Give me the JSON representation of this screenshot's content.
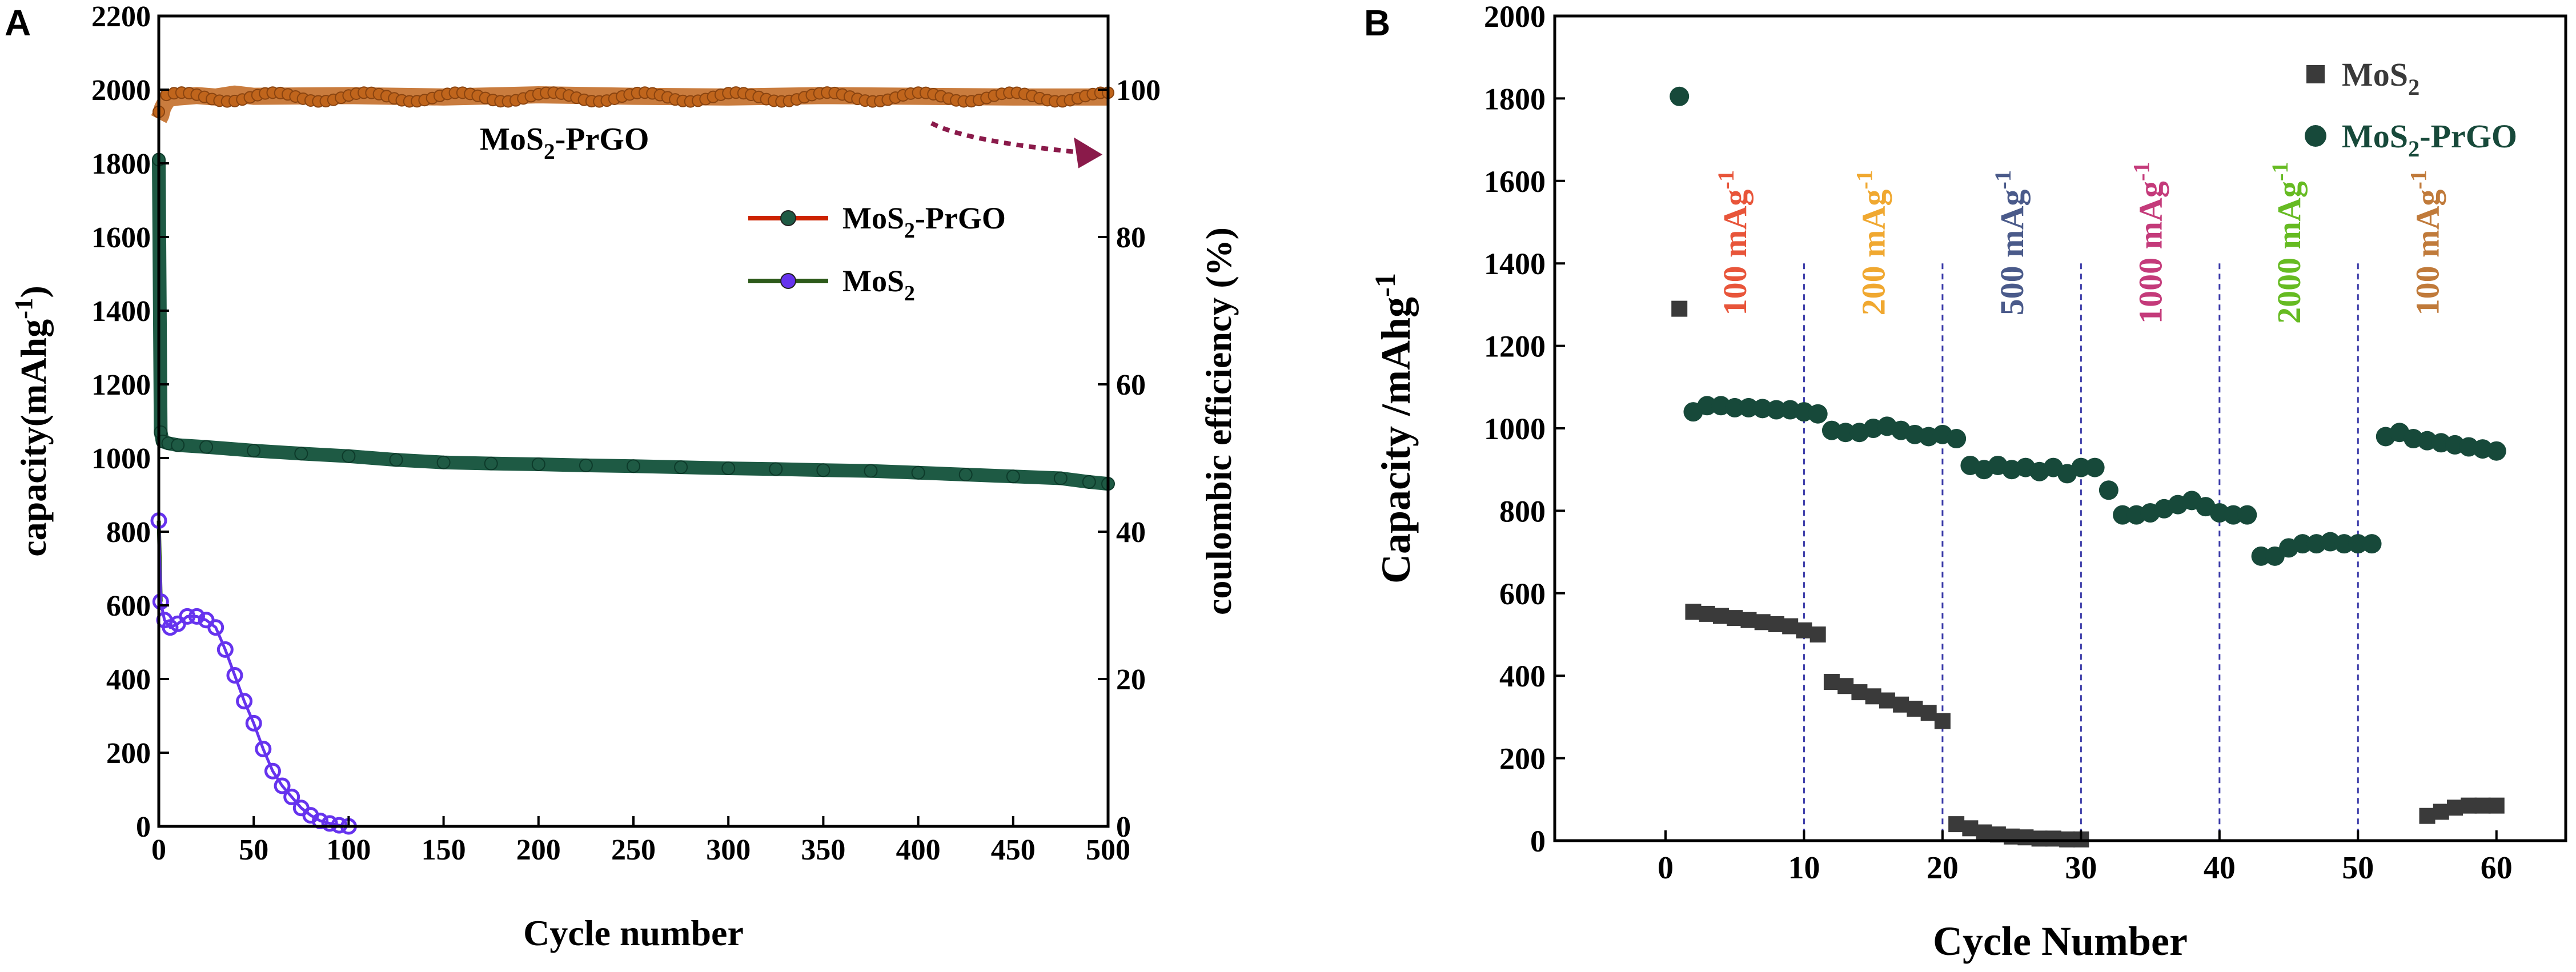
{
  "panels": [
    {
      "letter": "A"
    },
    {
      "letter": "B"
    }
  ],
  "chart_data": [
    {
      "type": "line",
      "panel": "A",
      "title": "",
      "xlabel": "Cycle number",
      "ylabel": "capacity(mAhg",
      "ylabel_sup": "-1",
      "ylabel_close": ")",
      "y2label": "coulombic efficiency (%)",
      "xlim": [
        0,
        500
      ],
      "ylim": [
        0,
        2200
      ],
      "y2lim": [
        0,
        110
      ],
      "xticks": [
        0,
        50,
        100,
        150,
        200,
        250,
        300,
        350,
        400,
        450,
        500
      ],
      "yticks": [
        0,
        200,
        400,
        600,
        800,
        1000,
        1200,
        1400,
        1600,
        1800,
        2000,
        2200
      ],
      "y2ticks": [
        0,
        20,
        40,
        60,
        80,
        100
      ],
      "grid": false,
      "legend_position": "center-right",
      "legend": [
        {
          "base": "MoS",
          "sub": "2",
          "tail": "-PrGO",
          "color": "#cc2200",
          "marker": "#1e5a44"
        },
        {
          "base": "MoS",
          "sub": "2",
          "tail": "",
          "color": "#2d5a1a",
          "marker": "#6633ee"
        }
      ],
      "annotation": {
        "base": "MoS",
        "sub": "2",
        "tail": "-PrGO",
        "x": 400,
        "y2": 97
      },
      "ce_color": "#c0651c",
      "series": [
        {
          "name": "MoS2-PrGO",
          "axis": "left",
          "color": "#1e5a44",
          "x": [
            0,
            1,
            2,
            5,
            10,
            25,
            50,
            75,
            100,
            125,
            150,
            175,
            200,
            225,
            250,
            275,
            300,
            325,
            350,
            375,
            400,
            425,
            450,
            475,
            490,
            500
          ],
          "y": [
            1810,
            1070,
            1045,
            1040,
            1035,
            1030,
            1020,
            1012,
            1005,
            995,
            988,
            985,
            983,
            980,
            978,
            975,
            972,
            970,
            967,
            965,
            960,
            955,
            950,
            945,
            935,
            930
          ]
        },
        {
          "name": "MoS2",
          "axis": "left",
          "color": "#6633ee",
          "x": [
            0,
            1,
            3,
            6,
            10,
            15,
            20,
            25,
            30,
            35,
            40,
            45,
            50,
            55,
            60,
            65,
            70,
            75,
            80,
            85,
            90,
            95,
            100
          ],
          "y": [
            830,
            610,
            560,
            540,
            550,
            570,
            570,
            560,
            540,
            480,
            410,
            340,
            280,
            210,
            150,
            110,
            80,
            50,
            30,
            15,
            8,
            3,
            0
          ]
        },
        {
          "name": "CE MoS2-PrGO",
          "axis": "right",
          "color": "#c0651c",
          "x": [
            0,
            1,
            2,
            3,
            5,
            10,
            20,
            30,
            40,
            50,
            100,
            150,
            200,
            250,
            300,
            350,
            400,
            450,
            500
          ],
          "y": [
            96,
            96.5,
            97.5,
            98,
            98.8,
            99,
            99.2,
            99,
            99.4,
            99.1,
            99.2,
            99,
            99.3,
            99.1,
            99,
            99.2,
            99.1,
            99,
            99
          ]
        }
      ]
    },
    {
      "type": "scatter",
      "panel": "B",
      "title": "",
      "xlabel": "Cycle Number",
      "ylabel": "Capacity /mAhg",
      "ylabel_sup": "-1",
      "xlim": [
        -8,
        65
      ],
      "ylim": [
        0,
        2000
      ],
      "xticks": [
        0,
        10,
        20,
        30,
        40,
        50,
        60
      ],
      "yticks": [
        0,
        200,
        400,
        600,
        800,
        1000,
        1200,
        1400,
        1600,
        1800,
        2000
      ],
      "grid": false,
      "legend_position": "top-right",
      "legend": [
        {
          "base": "MoS",
          "sub": "2",
          "tail": "",
          "marker": "square",
          "color": "#3a3a3a",
          "text_color": "#3a3a3a"
        },
        {
          "base": "MoS",
          "sub": "2",
          "tail": "-PrGO",
          "marker": "circle",
          "color": "#17493a",
          "text_color": "#17493a"
        }
      ],
      "dividers": [
        10,
        20,
        30,
        40,
        50
      ],
      "rate_labels": [
        {
          "text": "100 mAg",
          "sup": "-1",
          "x": 5,
          "color": "#e8553a"
        },
        {
          "text": "200 mAg",
          "sup": "-1",
          "x": 15,
          "color": "#f0a830"
        },
        {
          "text": "500 mAg",
          "sup": "-1",
          "x": 25,
          "color": "#4a5a8a"
        },
        {
          "text": "1000 mAg",
          "sup": "-1",
          "x": 35,
          "color": "#c43a7a"
        },
        {
          "text": "2000 mAg",
          "sup": "-1",
          "x": 45,
          "color": "#66bb22"
        },
        {
          "text": "100 mAg",
          "sup": "-1",
          "x": 55,
          "color": "#c07a3a"
        }
      ],
      "series": [
        {
          "name": "MoS2",
          "marker": "square",
          "color": "#3a3a3a",
          "x": [
            1,
            2,
            3,
            4,
            5,
            6,
            7,
            8,
            9,
            10,
            11,
            12,
            13,
            14,
            15,
            16,
            17,
            18,
            19,
            20,
            21,
            22,
            23,
            24,
            25,
            26,
            27,
            28,
            29,
            30,
            55,
            56,
            57,
            58,
            59,
            60
          ],
          "y": [
            1290,
            555,
            550,
            545,
            540,
            535,
            530,
            525,
            520,
            510,
            500,
            385,
            375,
            360,
            350,
            340,
            330,
            320,
            310,
            290,
            40,
            30,
            20,
            15,
            10,
            8,
            5,
            5,
            3,
            3,
            60,
            70,
            80,
            85,
            85,
            85
          ]
        },
        {
          "name": "MoS2-PrGO",
          "marker": "circle",
          "color": "#17493a",
          "x": [
            1,
            2,
            3,
            4,
            5,
            6,
            7,
            8,
            9,
            10,
            11,
            12,
            13,
            14,
            15,
            16,
            17,
            18,
            19,
            20,
            21,
            22,
            23,
            24,
            25,
            26,
            27,
            28,
            29,
            30,
            31,
            32,
            33,
            34,
            35,
            36,
            37,
            38,
            39,
            40,
            41,
            42,
            43,
            44,
            45,
            46,
            47,
            48,
            49,
            50,
            51,
            52,
            53,
            54,
            55,
            56,
            57,
            58,
            59,
            60
          ],
          "y": [
            1805,
            1040,
            1055,
            1055,
            1050,
            1050,
            1048,
            1045,
            1045,
            1040,
            1035,
            995,
            990,
            990,
            1000,
            1005,
            995,
            985,
            980,
            985,
            975,
            910,
            900,
            910,
            900,
            905,
            895,
            905,
            890,
            905,
            905,
            850,
            790,
            790,
            795,
            805,
            815,
            825,
            810,
            795,
            790,
            790,
            690,
            690,
            710,
            720,
            720,
            725,
            720,
            720,
            720,
            980,
            990,
            975,
            970,
            965,
            960,
            955,
            950,
            945
          ]
        }
      ]
    }
  ]
}
